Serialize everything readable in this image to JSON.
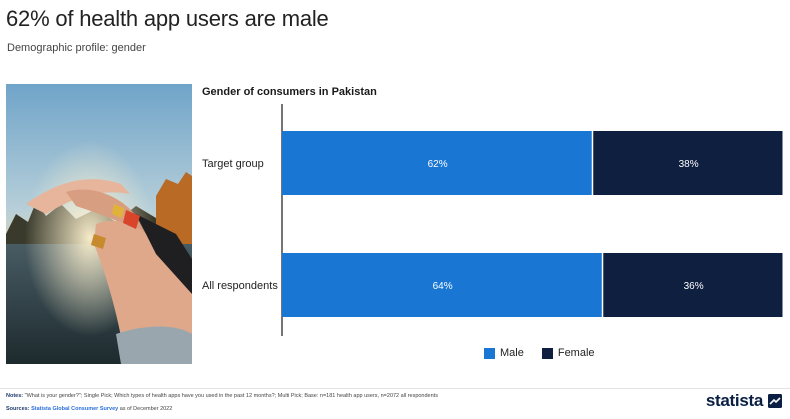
{
  "page": {
    "title": "62% of health app users are male",
    "subtitle": "Demographic profile: gender"
  },
  "chart_title": "Gender of consumers in Pakistan",
  "chart_data": {
    "type": "bar",
    "orientation": "horizontal",
    "stacked": true,
    "title": "Gender of consumers in Pakistan",
    "categories": [
      "Target group",
      "All respondents"
    ],
    "series": [
      {
        "name": "Male",
        "values": [
          62,
          64
        ],
        "labels": [
          "62%",
          "64%"
        ],
        "color": "#1976d2"
      },
      {
        "name": "Female",
        "values": [
          38,
          36
        ],
        "labels": [
          "38%",
          "36%"
        ],
        "color": "#0e1f3f"
      }
    ],
    "xlim": [
      0,
      100
    ],
    "legend": "bottom",
    "grid": false
  },
  "legend": {
    "male": "Male",
    "female": "Female"
  },
  "footer": {
    "notes_label": "Notes:",
    "notes_text": "\"What is your gender?\"; Single Pick; Which types of health apps have you used in the past 12 months?; Multi Pick; Base: n=181 health app users, n=2072 all respondents",
    "sources_label": "Sources:",
    "sources_link": "Statista Global Consumer Survey",
    "sources_text": " as of December 2022"
  },
  "brand": {
    "name": "statista"
  },
  "colors": {
    "male": "#1976d2",
    "female": "#0e1f3f"
  }
}
